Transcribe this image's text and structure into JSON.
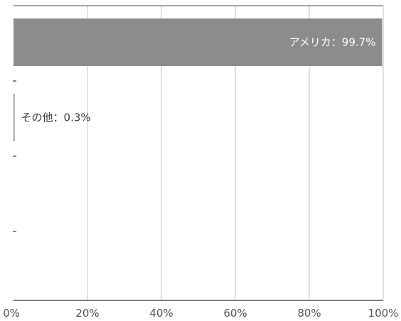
{
  "chart_data": {
    "type": "bar",
    "orientation": "horizontal",
    "title": "",
    "xlabel": "",
    "ylabel": "",
    "categories": [
      "アメリカ",
      "その他",
      "",
      ""
    ],
    "values": [
      99.7,
      0.3,
      null,
      null
    ],
    "data_labels": [
      "アメリカ：99.7%",
      "その他：0.3%",
      "",
      ""
    ],
    "xlim": [
      0,
      100
    ],
    "x_ticks": [
      0,
      20,
      40,
      60,
      80,
      100
    ],
    "x_tick_labels": [
      "0%",
      "20%",
      "40%",
      "60%",
      "80%",
      "100%"
    ],
    "grid": true,
    "legend": "none",
    "colors": {
      "bar": "#8c8c8c",
      "grid": "#d6d6d6",
      "axis": "#555555",
      "label_inside": "#ffffff",
      "label_outside": "#3a3a3a"
    }
  }
}
